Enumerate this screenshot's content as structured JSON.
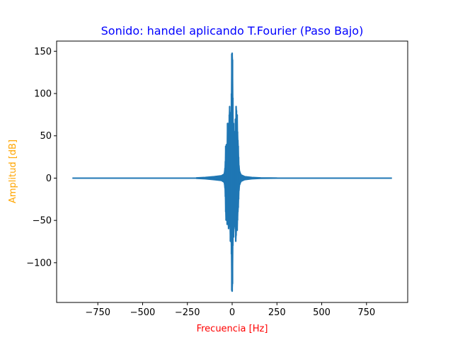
{
  "chart_data": {
    "type": "line",
    "title": "Sonido: handel aplicando T.Fourier (Paso Bajo)",
    "xlabel": "Frecuencia [Hz]",
    "ylabel": "Amplitud [dB]",
    "xlim": [
      -980,
      980
    ],
    "ylim": [
      -147,
      162
    ],
    "x_ticks": [
      -750,
      -500,
      -250,
      0,
      250,
      500,
      750
    ],
    "x_tick_labels": [
      "−750",
      "−500",
      "−250",
      "0",
      "250",
      "500",
      "750"
    ],
    "y_ticks": [
      -100,
      -50,
      0,
      50,
      100,
      150
    ],
    "y_tick_labels": [
      "−100",
      "−50",
      "0",
      "50",
      "100",
      "150"
    ],
    "grid": false,
    "series": [
      {
        "color": "#1f77b4",
        "baseline_range": [
          -892,
          892
        ],
        "envelope": [
          {
            "x": -200,
            "max": 0.5,
            "min": -0.5
          },
          {
            "x": -150,
            "max": 1,
            "min": -1
          },
          {
            "x": -100,
            "max": 2,
            "min": -2
          },
          {
            "x": -60,
            "max": 3,
            "min": -3
          },
          {
            "x": -45,
            "max": 5,
            "min": -5
          },
          {
            "x": -40,
            "max": 12,
            "min": -12
          },
          {
            "x": -38,
            "max": 20,
            "min": -22
          },
          {
            "x": -36,
            "max": 38,
            "min": -40
          },
          {
            "x": -34,
            "max": 30,
            "min": -50
          },
          {
            "x": -32,
            "max": 40,
            "min": -35
          },
          {
            "x": -30,
            "max": 35,
            "min": -30
          },
          {
            "x": -28,
            "max": 40,
            "min": -55
          },
          {
            "x": -26,
            "max": 65,
            "min": -45
          },
          {
            "x": -24,
            "max": 45,
            "min": -50
          },
          {
            "x": -22,
            "max": 50,
            "min": -55
          },
          {
            "x": -20,
            "max": 65,
            "min": -60
          },
          {
            "x": -18,
            "max": 60,
            "min": -55
          },
          {
            "x": -16,
            "max": 75,
            "min": -50
          },
          {
            "x": -14,
            "max": 85,
            "min": -55
          },
          {
            "x": -12,
            "max": 78,
            "min": -58
          },
          {
            "x": -10,
            "max": 60,
            "min": -75
          },
          {
            "x": -8,
            "max": 70,
            "min": -65
          },
          {
            "x": -6,
            "max": 55,
            "min": -70
          },
          {
            "x": -4,
            "max": 100,
            "min": -90
          },
          {
            "x": -2,
            "max": 147,
            "min": -133
          },
          {
            "x": 0,
            "max": 148,
            "min": -134
          },
          {
            "x": 2,
            "max": 140,
            "min": -125
          },
          {
            "x": 4,
            "max": 95,
            "min": -80
          },
          {
            "x": 6,
            "max": 55,
            "min": -60
          },
          {
            "x": 8,
            "max": 65,
            "min": -70
          },
          {
            "x": 10,
            "max": 50,
            "min": -60
          },
          {
            "x": 12,
            "max": 55,
            "min": -55
          },
          {
            "x": 14,
            "max": 45,
            "min": -50
          },
          {
            "x": 16,
            "max": 50,
            "min": -48
          },
          {
            "x": 18,
            "max": 70,
            "min": -58
          },
          {
            "x": 20,
            "max": 65,
            "min": -75
          },
          {
            "x": 22,
            "max": 85,
            "min": -68
          },
          {
            "x": 24,
            "max": 80,
            "min": -60
          },
          {
            "x": 26,
            "max": 60,
            "min": -55
          },
          {
            "x": 28,
            "max": 75,
            "min": -62
          },
          {
            "x": 30,
            "max": 55,
            "min": -50
          },
          {
            "x": 32,
            "max": 45,
            "min": -40
          },
          {
            "x": 34,
            "max": 38,
            "min": -35
          },
          {
            "x": 36,
            "max": 25,
            "min": -25
          },
          {
            "x": 38,
            "max": 15,
            "min": -15
          },
          {
            "x": 42,
            "max": 8,
            "min": -8
          },
          {
            "x": 50,
            "max": 4,
            "min": -4
          },
          {
            "x": 70,
            "max": 2,
            "min": -2
          },
          {
            "x": 110,
            "max": 1,
            "min": -1
          },
          {
            "x": 160,
            "max": 0.5,
            "min": -0.5
          },
          {
            "x": 250,
            "max": 0.3,
            "min": -0.3
          }
        ]
      }
    ]
  }
}
